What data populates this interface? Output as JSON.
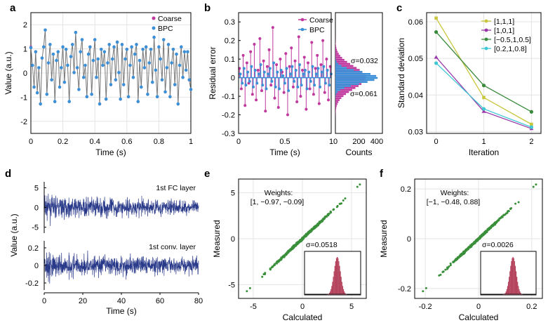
{
  "chart_data": [
    {
      "panel": "a",
      "type": "line",
      "xlabel": "Time (s)",
      "ylabel": "Value (a.u.)",
      "xlim": [
        0,
        1
      ],
      "ylim": [
        -2.5,
        2.5
      ],
      "xticks": [
        "0",
        "0.2",
        "0.4",
        "0.6",
        "0.8",
        "1"
      ],
      "yticks": [
        "-2",
        "-1",
        "0",
        "1",
        "2"
      ],
      "grid": true,
      "legend": {
        "placement": "top-right",
        "entries": [
          "Coarse",
          "BPC"
        ]
      },
      "x": [
        0,
        0.01,
        0.02,
        0.03,
        0.04,
        0.05,
        0.06,
        0.07,
        0.08,
        0.09,
        0.1,
        0.11,
        0.12,
        0.13,
        0.14,
        0.15,
        0.16,
        0.17,
        0.18,
        0.19,
        0.2,
        0.21,
        0.22,
        0.23,
        0.24,
        0.25,
        0.26,
        0.27,
        0.28,
        0.29,
        0.3,
        0.31,
        0.32,
        0.33,
        0.34,
        0.35,
        0.36,
        0.37,
        0.38,
        0.39,
        0.4,
        0.41,
        0.42,
        0.43,
        0.44,
        0.45,
        0.46,
        0.47,
        0.48,
        0.49,
        0.5,
        0.51,
        0.52,
        0.53,
        0.54,
        0.55,
        0.56,
        0.57,
        0.58,
        0.59,
        0.6,
        0.61,
        0.62,
        0.63,
        0.64,
        0.65,
        0.66,
        0.67,
        0.68,
        0.69,
        0.7,
        0.71,
        0.72,
        0.73,
        0.74,
        0.75,
        0.76,
        0.77,
        0.78,
        0.79,
        0.8,
        0.81,
        0.82,
        0.83,
        0.84,
        0.85,
        0.86,
        0.87,
        0.88,
        0.89,
        0.9,
        0.91,
        0.92,
        0.93,
        0.94,
        0.95,
        0.96,
        0.97,
        0.98,
        0.99,
        1.0
      ],
      "series": [
        {
          "name": "Coarse",
          "color": "#c0389d",
          "values": [
            1.1,
            0.3,
            -0.6,
            0.9,
            -0.8,
            0.2,
            -1.3,
            0.6,
            1.1,
            1.8,
            -0.9,
            0.4,
            1.2,
            -0.3,
            0.8,
            -1.2,
            0.5,
            0.9,
            -0.6,
            0.2,
            1.1,
            -0.4,
            1.0,
            0.3,
            -1.2,
            0.7,
            1.2,
            0.0,
            1.7,
            0.2,
            -0.7,
            0.9,
            1.4,
            -0.2,
            0.3,
            -1.0,
            0.8,
            1.1,
            -0.9,
            0.5,
            1.4,
            -0.2,
            0.6,
            -1.3,
            1.0,
            0.3,
            0.9,
            -1.1,
            0.4,
            1.2,
            -0.5,
            0.6,
            1.1,
            -0.3,
            1.3,
            0.0,
            -1.1,
            1.2,
            -0.5,
            0.6,
            1.0,
            -1.0,
            0.3,
            1.1,
            -0.2,
            0.8,
            1.2,
            -1.2,
            0.5,
            -0.6,
            1.0,
            0.2,
            1.1,
            -0.9,
            0.4,
            1.0,
            -0.4,
            1.5,
            0.1,
            -1.0,
            1.1,
            0.6,
            -0.3,
            1.4,
            -0.8,
            0.2,
            1.2,
            -1.0,
            0.4,
            1.0,
            -0.5,
            0.8,
            -1.3,
            0.3,
            1.1,
            -0.2,
            0.9,
            0.1,
            0.9,
            -0.3,
            -0.7
          ]
        },
        {
          "name": "BPC",
          "color": "#3a8fd6",
          "values": [
            1.05,
            0.32,
            -0.58,
            0.88,
            -0.82,
            0.22,
            -1.28,
            0.62,
            1.08,
            1.78,
            -0.88,
            0.42,
            1.18,
            -0.28,
            0.78,
            -1.18,
            0.52,
            0.88,
            -0.58,
            0.22,
            1.08,
            -0.38,
            0.98,
            0.32,
            -1.18,
            0.68,
            1.18,
            0.02,
            1.68,
            0.22,
            -0.68,
            0.88,
            1.38,
            -0.18,
            0.32,
            -0.98,
            0.78,
            1.08,
            -0.88,
            0.52,
            1.38,
            -0.18,
            0.58,
            -1.28,
            0.98,
            0.32,
            0.88,
            -1.08,
            0.42,
            1.18,
            -0.48,
            0.58,
            1.08,
            -0.28,
            1.28,
            0.02,
            -1.08,
            1.18,
            -0.48,
            0.58,
            0.98,
            -0.98,
            0.32,
            1.08,
            -0.18,
            0.78,
            1.18,
            -1.18,
            0.52,
            -0.58,
            0.98,
            0.22,
            1.08,
            -0.88,
            0.42,
            0.98,
            -0.38,
            1.48,
            0.12,
            -0.98,
            1.08,
            0.58,
            -0.28,
            1.38,
            -0.78,
            0.22,
            1.18,
            -0.98,
            0.42,
            0.98,
            -0.48,
            0.78,
            -1.28,
            0.32,
            1.08,
            -0.18,
            0.88,
            0.12,
            0.88,
            -0.28,
            -0.68
          ]
        }
      ]
    },
    {
      "panel": "b",
      "type": "scatter",
      "xlabel": "Time (s)",
      "ylabel": "Residual error",
      "xlim": [
        0,
        1
      ],
      "ylim": [
        -0.3,
        0.35
      ],
      "xticks": [
        "0",
        "0.5",
        "1"
      ],
      "yticks": [
        "0.3",
        "0.2",
        "0.1",
        "0",
        "-0.1",
        "-0.2",
        "-0.3"
      ],
      "legend": {
        "placement": "top-right",
        "entries": [
          "Coarse",
          "BPC"
        ]
      },
      "series": [
        {
          "name": "Coarse",
          "color": "#c0389d",
          "values": [
            0.05,
            -0.06,
            0.12,
            -0.15,
            0.08,
            -0.03,
            0.14,
            -0.09,
            0.18,
            -0.12,
            0.04,
            0.21,
            -0.07,
            0.09,
            -0.18,
            0.06,
            0.15,
            -0.04,
            0.27,
            -0.11,
            0.07,
            -0.16,
            0.1,
            0.03,
            -0.08,
            0.13,
            -0.2,
            0.06,
            0.16,
            -0.05,
            0.09,
            -0.13,
            0.22,
            -0.1,
            0.04,
            0.11,
            -0.17,
            0.08,
            -0.06,
            0.19,
            -0.09,
            0.05,
            0.12,
            -0.14,
            0.07,
            0.2,
            -0.08,
            0.1,
            -0.12,
            0.06
          ]
        },
        {
          "name": "BPC",
          "color": "#3a8fd6",
          "values": [
            0.02,
            -0.03,
            0.05,
            -0.04,
            0.03,
            -0.02,
            0.06,
            -0.05,
            0.04,
            -0.03,
            0.02,
            0.07,
            -0.04,
            0.03,
            -0.06,
            0.02,
            0.05,
            -0.02,
            0.08,
            -0.05,
            0.03,
            -0.06,
            0.04,
            0.01,
            -0.03,
            0.05,
            -0.07,
            0.02,
            0.06,
            -0.02,
            0.04,
            -0.05,
            0.07,
            -0.04,
            0.02,
            0.04,
            -0.06,
            0.03,
            -0.02,
            0.06,
            -0.04,
            0.02,
            0.05,
            -0.05,
            0.03,
            0.06,
            -0.03,
            0.04,
            -0.04,
            0.02
          ]
        }
      ],
      "histogram": {
        "xlabel": "Counts",
        "xticks": [
          "200",
          "400"
        ],
        "xlim": [
          0,
          400
        ],
        "annotations": [
          {
            "text": "σ=0.032",
            "color": "#3a8fd6"
          },
          {
            "text": "σ=0.061",
            "color": "#c0389d"
          }
        ]
      }
    },
    {
      "panel": "c",
      "type": "line",
      "xlabel": "Iteration",
      "ylabel": "Standard deviation",
      "xlim": [
        -0.2,
        2.2
      ],
      "ylim": [
        0.0295,
        0.0625
      ],
      "xticks": [
        "0",
        "1",
        "2"
      ],
      "yticks": [
        "0.06",
        "0.05",
        "0.04",
        "0.03"
      ],
      "grid": true,
      "legend": {
        "placement": "top-right"
      },
      "categories": [
        "0",
        "1",
        "2"
      ],
      "series": [
        {
          "name": "[1,1,1]",
          "color": "#c8c63d",
          "values": [
            0.061,
            0.0393,
            0.032
          ]
        },
        {
          "name": "[1,0,1]",
          "color": "#9a35a8",
          "values": [
            0.0503,
            0.0355,
            0.0308
          ]
        },
        {
          "name": "[−0.5,1,0.5]",
          "color": "#3a8a3c",
          "values": [
            0.0572,
            0.0426,
            0.0354
          ]
        },
        {
          "name": "[0.2,1,0.8]",
          "color": "#3fc8d3",
          "values": [
            0.0487,
            0.0362,
            0.0312
          ]
        }
      ]
    },
    {
      "panel": "d",
      "type": "line",
      "xlabel": "Time (s)",
      "ylabel": "Value (a.u.)",
      "xticks": [
        "0",
        "20",
        "40",
        "60",
        "80"
      ],
      "xlim": [
        0,
        80
      ],
      "subplots": [
        {
          "label": "1st FC layer",
          "yticks": [
            "5",
            "0",
            "-5"
          ],
          "ylim": [
            -6.5,
            6.5
          ],
          "color": "#2a3a8a"
        },
        {
          "label": "1st conv. layer",
          "yticks": [
            "0.2",
            "0",
            "-0.2"
          ],
          "ylim": [
            -0.28,
            0.28
          ],
          "color": "#2a3a8a"
        }
      ]
    },
    {
      "panel": "e",
      "type": "scatter",
      "xlabel": "Calculated",
      "ylabel": "Measured",
      "xlim": [
        -6.5,
        6.5
      ],
      "ylim": [
        -6.5,
        6.5
      ],
      "xticks": [
        "-5",
        "0",
        "5"
      ],
      "yticks": [
        "5",
        "0",
        "-5"
      ],
      "grid": true,
      "color": "#3a8f3a",
      "annotation_title": "Weights:",
      "annotation_weights": "[1, −0.97, −0.09]",
      "inset_label": "σ=0.0518",
      "inset_color": "#b5455e"
    },
    {
      "panel": "f",
      "type": "scatter",
      "xlabel": "Calculated",
      "ylabel": "Measured",
      "xlim": [
        -0.24,
        0.24
      ],
      "ylim": [
        -0.24,
        0.24
      ],
      "xticks": [
        "-0.2",
        "0",
        "0.2"
      ],
      "yticks": [
        "0.2",
        "0",
        "-0.2"
      ],
      "grid": true,
      "color": "#3a8f3a",
      "annotation_title": "Weights:",
      "annotation_weights": "[−1, −0.48, 0.88]",
      "inset_label": "σ=0.0026",
      "inset_color": "#b5455e"
    }
  ]
}
